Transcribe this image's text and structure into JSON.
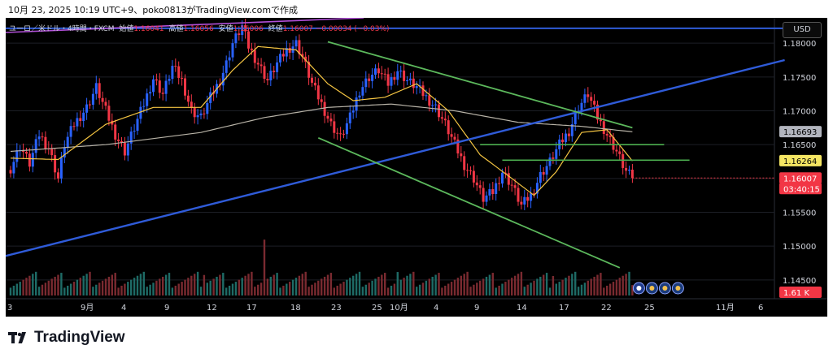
{
  "screenshot_title": "10月 23, 2025 10:19 UTC+9、poko0813がTradingView.comで作成",
  "legend": {
    "symbol": "ユーロ／米ドル・4時間・FXCM",
    "open_label": "始値",
    "open": "1.16041",
    "high_label": "高値",
    "high": "1.16056",
    "low_label": "安値",
    "low": "1.16006",
    "close_label": "終値",
    "close": "1.16007",
    "change": "−0.00034 (−0.03%)"
  },
  "currency_button": "USD",
  "brand": "TradingView",
  "colors": {
    "up": "#2962ff",
    "down": "#f23645",
    "ema_short": "#f5c542",
    "ma_long": "#b8b3a7",
    "trendline_blue": "#2f5bd8",
    "channel_green": "#5cb85c",
    "level_green": "#4caf50",
    "top_purple": "#b14fd8"
  },
  "chart_data": {
    "type": "candlestick",
    "price_axis": {
      "ticks": [
        "1.18000",
        "1.17500",
        "1.17000",
        "1.16500",
        "1.16000",
        "1.15500",
        "1.15000",
        "1.14500"
      ],
      "range": [
        1.1415,
        1.1835
      ]
    },
    "time_axis": {
      "labels": [
        "3",
        "9月",
        "4",
        "9",
        "12",
        "17",
        "18",
        "23",
        "25",
        "10月",
        "4",
        "9",
        "14",
        "17",
        "22",
        "25",
        "11月",
        "6"
      ]
    },
    "price_labels": [
      {
        "value": "1.16693",
        "name": "ma_long_value",
        "bg": "#b2b5be",
        "fg": "#000000"
      },
      {
        "value": "1.16264",
        "name": "ema_short_value",
        "bg": "#f5e663",
        "fg": "#000000"
      },
      {
        "value": "1.16007",
        "name": "last_price",
        "bg": "#f23645",
        "fg": "#ffffff"
      },
      {
        "value": "03:40:15",
        "name": "bar_countdown",
        "bg": "#f23645",
        "fg": "#ffffff"
      },
      {
        "value": "1.61 K",
        "name": "volume_value",
        "bg": "#f23645",
        "fg": "#ffffff"
      }
    ],
    "close_path": [
      [
        0,
        1.1615
      ],
      [
        3,
        1.1648
      ],
      [
        6,
        1.1622
      ],
      [
        9,
        1.1665
      ],
      [
        12,
        1.1645
      ],
      [
        15,
        1.16
      ],
      [
        17,
        1.165
      ],
      [
        20,
        1.168
      ],
      [
        24,
        1.1705
      ],
      [
        27,
        1.1735
      ],
      [
        30,
        1.17
      ],
      [
        33,
        1.1665
      ],
      [
        36,
        1.164
      ],
      [
        39,
        1.1675
      ],
      [
        42,
        1.171
      ],
      [
        45,
        1.1748
      ],
      [
        48,
        1.1725
      ],
      [
        51,
        1.1765
      ],
      [
        54,
        1.1745
      ],
      [
        57,
        1.17
      ],
      [
        60,
        1.169
      ],
      [
        63,
        1.172
      ],
      [
        66,
        1.1745
      ],
      [
        68,
        1.177
      ],
      [
        70,
        1.18
      ],
      [
        73,
        1.1825
      ],
      [
        75,
        1.1795
      ],
      [
        78,
        1.177
      ],
      [
        81,
        1.1745
      ],
      [
        84,
        1.177
      ],
      [
        87,
        1.179
      ],
      [
        90,
        1.18
      ],
      [
        92,
        1.178
      ],
      [
        95,
        1.174
      ],
      [
        98,
        1.171
      ],
      [
        101,
        1.168
      ],
      [
        104,
        1.166
      ],
      [
        107,
        1.169
      ],
      [
        110,
        1.173
      ],
      [
        113,
        1.175
      ],
      [
        116,
        1.176
      ],
      [
        119,
        1.174
      ],
      [
        122,
        1.176
      ],
      [
        125,
        1.1745
      ],
      [
        128,
        1.1735
      ],
      [
        131,
        1.172
      ],
      [
        134,
        1.1705
      ],
      [
        137,
        1.168
      ],
      [
        140,
        1.165
      ],
      [
        143,
        1.162
      ],
      [
        146,
        1.16
      ],
      [
        149,
        1.157
      ],
      [
        152,
        1.158
      ],
      [
        155,
        1.161
      ],
      [
        158,
        1.159
      ],
      [
        161,
        1.156
      ],
      [
        164,
        1.1575
      ],
      [
        167,
        1.1605
      ],
      [
        170,
        1.1625
      ],
      [
        173,
        1.165
      ],
      [
        176,
        1.167
      ],
      [
        179,
        1.1705
      ],
      [
        182,
        1.1725
      ],
      [
        185,
        1.169
      ],
      [
        188,
        1.1665
      ],
      [
        191,
        1.164
      ],
      [
        194,
        1.161
      ],
      [
        196,
        1.1601
      ]
    ],
    "series": [
      {
        "name": "ema_short",
        "values": [
          [
            0,
            1.163
          ],
          [
            15,
            1.1628
          ],
          [
            30,
            1.168
          ],
          [
            45,
            1.1705
          ],
          [
            60,
            1.1705
          ],
          [
            70,
            1.176
          ],
          [
            78,
            1.1795
          ],
          [
            90,
            1.179
          ],
          [
            100,
            1.174
          ],
          [
            108,
            1.1715
          ],
          [
            118,
            1.172
          ],
          [
            128,
            1.174
          ],
          [
            138,
            1.17
          ],
          [
            148,
            1.1635
          ],
          [
            158,
            1.16
          ],
          [
            165,
            1.1575
          ],
          [
            172,
            1.161
          ],
          [
            180,
            1.1668
          ],
          [
            188,
            1.1672
          ],
          [
            196,
            1.1626
          ]
        ]
      },
      {
        "name": "ma_long",
        "values": [
          [
            0,
            1.164
          ],
          [
            30,
            1.165
          ],
          [
            60,
            1.1668
          ],
          [
            80,
            1.169
          ],
          [
            100,
            1.1705
          ],
          [
            120,
            1.171
          ],
          [
            140,
            1.17
          ],
          [
            160,
            1.1683
          ],
          [
            180,
            1.1677
          ],
          [
            196,
            1.1669
          ]
        ]
      }
    ],
    "trendlines": [
      {
        "name": "blue_support",
        "from": [
          -2,
          1.1485
        ],
        "to": [
          244,
          1.1775
        ]
      },
      {
        "name": "blue_top",
        "from": [
          -2,
          1.1822
        ],
        "to": [
          244,
          1.1822
        ]
      },
      {
        "name": "channel_upper",
        "from": [
          100,
          1.1802
        ],
        "to": [
          196,
          1.1675
        ]
      },
      {
        "name": "channel_lower",
        "from": [
          97,
          1.166
        ],
        "to": [
          192,
          1.1468
        ]
      },
      {
        "name": "level_upper",
        "from": [
          148,
          1.165
        ],
        "to": [
          206,
          1.165
        ]
      },
      {
        "name": "level_lower",
        "from": [
          155,
          1.1627
        ],
        "to": [
          214,
          1.1627
        ]
      }
    ],
    "volume": {
      "max": 5.0,
      "last": 1.61
    }
  }
}
